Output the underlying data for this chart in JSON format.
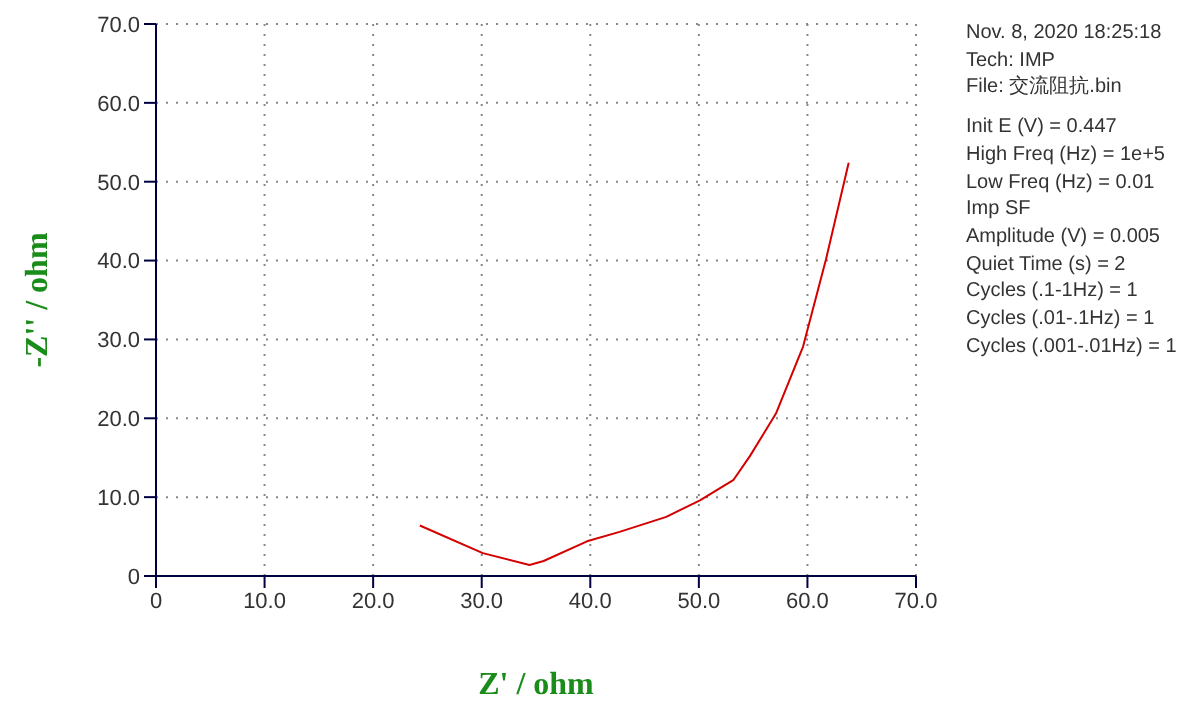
{
  "chart_data": {
    "type": "line",
    "xlabel": "Z' / ohm",
    "ylabel": "-Z'' / ohm",
    "x": [
      24.3,
      30.1,
      34.4,
      35.7,
      39.7,
      42.7,
      47.0,
      50.1,
      53.2,
      54.7,
      57.1,
      59.6,
      61.7,
      63.8
    ],
    "series": [
      {
        "color": "#d40000",
        "values": [
          6.4,
          2.9,
          1.4,
          1.9,
          4.4,
          5.6,
          7.5,
          9.6,
          12.2,
          15.2,
          20.6,
          29.1,
          40.1,
          52.4
        ]
      }
    ],
    "xlim": [
      0,
      70
    ],
    "ylim": [
      0,
      70
    ],
    "xticks": [
      0,
      {
        "value": 10,
        "label": "10.0"
      },
      {
        "value": 20,
        "label": "20.0"
      },
      {
        "value": 30,
        "label": "30.0"
      },
      {
        "value": 40,
        "label": "40.0"
      },
      {
        "value": 50,
        "label": "50.0"
      },
      {
        "value": 60,
        "label": "60.0"
      },
      {
        "value": 70,
        "label": "70.0"
      }
    ],
    "yticks": [
      0,
      {
        "value": 10,
        "label": "10.0"
      },
      {
        "value": 20,
        "label": "20.0"
      },
      {
        "value": 30,
        "label": "30.0"
      },
      {
        "value": 40,
        "label": "40.0"
      },
      {
        "value": 50,
        "label": "50.0"
      },
      {
        "value": 60,
        "label": "60.0"
      },
      {
        "value": 70,
        "label": "70.0"
      }
    ],
    "grid": true,
    "marker": "none",
    "line_style": "solid",
    "annotations": [
      "Nov. 8, 2020   18:25:18",
      "Tech: IMP",
      "File: 交流阻抗.bin",
      "Init E (V) = 0.447",
      "High Freq (Hz) = 1e+5",
      "Low Freq (Hz) = 0.01",
      "Imp SF",
      "Amplitude (V) = 0.005",
      "Quiet Time (s) = 2",
      "Cycles (.1-1Hz) = 1",
      "Cycles (.01-.1Hz) = 1",
      "Cycles (.001-.01Hz) = 1"
    ]
  }
}
